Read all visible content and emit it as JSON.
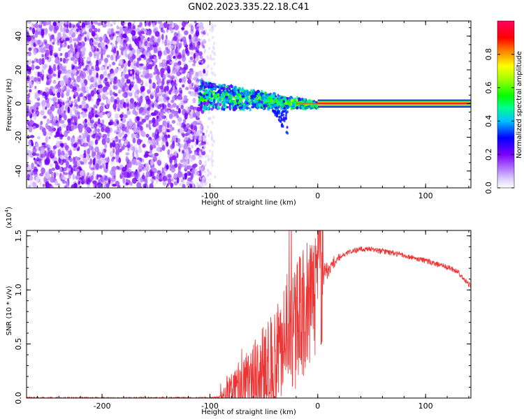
{
  "title": "GN02.2023.335.22.18.C41",
  "chart_data": [
    {
      "type": "heatmap",
      "xlabel": "Height of straight line (km)",
      "ylabel": "Frequency (Hz)",
      "xlim": [
        -270,
        142
      ],
      "ylim": [
        -50,
        49
      ],
      "xticks": [
        -200,
        -100,
        0,
        100
      ],
      "yticks": [
        -40,
        -20,
        0,
        20,
        40
      ],
      "colorbar": {
        "label": "Normalized spectral amplitude",
        "ticks": [
          "0.0",
          "0.2",
          "0.4",
          "0.6",
          "0.8"
        ],
        "range": [
          0,
          1
        ],
        "colormap": [
          "#e8e0ff",
          "#b070ff",
          "#7a00ff",
          "#0000ff",
          "#00c0ff",
          "#00ff90",
          "#00ff00",
          "#a0ff00",
          "#ffff00",
          "#ff8000",
          "#ff0000",
          "#ff0060"
        ]
      },
      "regions": [
        {
          "x": [
            -270,
            -105
          ],
          "freq": [
            -50,
            49
          ],
          "amplitude": [
            0.05,
            0.15
          ],
          "note": "broadband noise"
        },
        {
          "x": [
            -110,
            0
          ],
          "freq_center": [
            6,
            0
          ],
          "amplitude": [
            0.2,
            0.55
          ],
          "note": "converging band"
        },
        {
          "x": [
            0,
            142
          ],
          "freq_center": 0,
          "amplitude": 0.9,
          "note": "steady carrier"
        }
      ]
    },
    {
      "type": "line",
      "xlabel": "Height of straight line (km)",
      "ylabel": "SNR (10 * v/v)",
      "yscale_label": "(x10",
      "yscale_exp": "4",
      "yscale_close": ")",
      "xlim": [
        -270,
        142
      ],
      "ylim": [
        0,
        1.55
      ],
      "xticks": [
        -200,
        -100,
        0,
        100
      ],
      "yticks": [
        "0.0",
        "0.5",
        "1.0",
        "1.5"
      ],
      "line_color": "#ee3333",
      "series_profile": {
        "x": [
          -270,
          -100,
          -85,
          -70,
          -55,
          -40,
          -30,
          -20,
          -15,
          -10,
          0,
          10,
          20,
          30,
          45,
          60,
          80,
          100,
          120,
          130,
          142
        ],
        "y": [
          0.0,
          0.0,
          0.02,
          0.1,
          0.22,
          0.35,
          0.5,
          0.65,
          0.75,
          0.85,
          1.05,
          1.2,
          1.3,
          1.36,
          1.38,
          1.36,
          1.32,
          1.27,
          1.21,
          1.17,
          1.03
        ]
      }
    }
  ]
}
